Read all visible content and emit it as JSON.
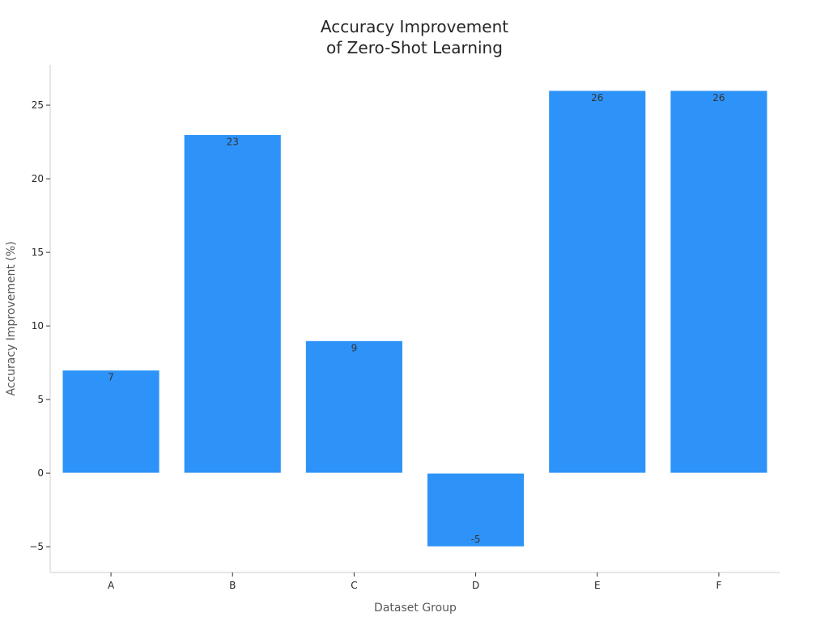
{
  "chart_data": {
    "type": "bar",
    "title": [
      "Accuracy Improvement",
      "of Zero-Shot Learning"
    ],
    "xlabel": "Dataset Group",
    "ylabel": "Accuracy Improvement (%)",
    "categories": [
      "A",
      "B",
      "C",
      "D",
      "E",
      "F"
    ],
    "values": [
      7,
      23,
      9,
      -5,
      26,
      26
    ],
    "data_labels": [
      "7",
      "23",
      "9",
      "-5",
      "26",
      "26"
    ],
    "ylim": [
      -6.75,
      27.75
    ],
    "yticks": [
      -5,
      0,
      5,
      10,
      15,
      20,
      25
    ],
    "ytick_labels": [
      "−5",
      "0",
      "5",
      "10",
      "15",
      "20",
      "25"
    ],
    "grid": false,
    "legend": "none",
    "bar_color": "#2e93f8"
  }
}
